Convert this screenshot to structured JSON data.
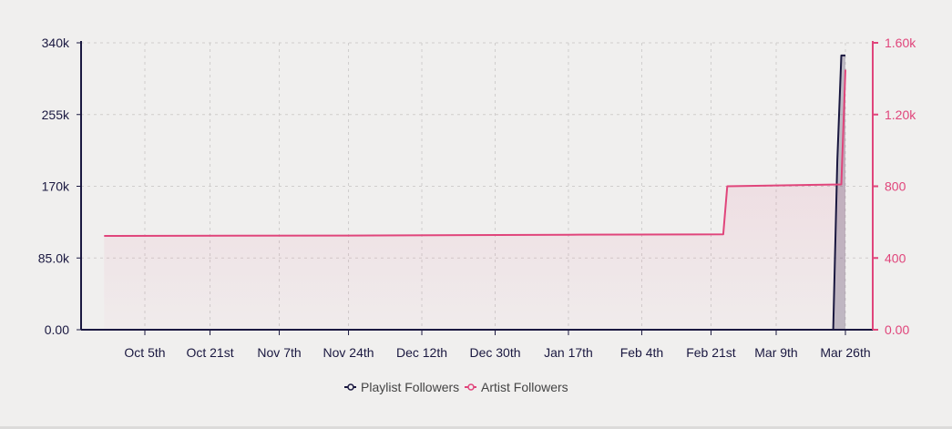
{
  "chart_data": {
    "type": "line",
    "x_ticks": [
      "Oct 5th",
      "Oct 21st",
      "Nov 7th",
      "Nov 24th",
      "Dec 12th",
      "Dec 30th",
      "Jan 17th",
      "Feb 4th",
      "Feb 21st",
      "Mar 9th",
      "Mar 26th"
    ],
    "y_left": {
      "ticks": [
        "0.00",
        "85.0k",
        "170k",
        "255k",
        "340k"
      ],
      "range": [
        0,
        340000
      ],
      "color": "#1a1840"
    },
    "y_right": {
      "ticks": [
        "0.00",
        "400",
        "800",
        "1.20k",
        "1.60k"
      ],
      "range": [
        0,
        1600
      ],
      "color": "#e0457b"
    },
    "grid": true,
    "legend_placement": "bottom",
    "series": [
      {
        "name": "Playlist Followers",
        "axis": "left",
        "color": "#1a1840",
        "points": [
          [
            "10-05",
            0
          ],
          [
            "03-23",
            0
          ],
          [
            "03-24",
            200000
          ],
          [
            "03-25",
            325000
          ],
          [
            "03-26",
            325000
          ]
        ]
      },
      {
        "name": "Artist Followers",
        "axis": "right",
        "color": "#e0457b",
        "points": [
          [
            "09-26",
            523
          ],
          [
            "11-24",
            525
          ],
          [
            "01-17",
            530
          ],
          [
            "02-24",
            532
          ],
          [
            "02-25",
            800
          ],
          [
            "03-25",
            810
          ],
          [
            "03-26",
            1450
          ]
        ]
      }
    ]
  }
}
